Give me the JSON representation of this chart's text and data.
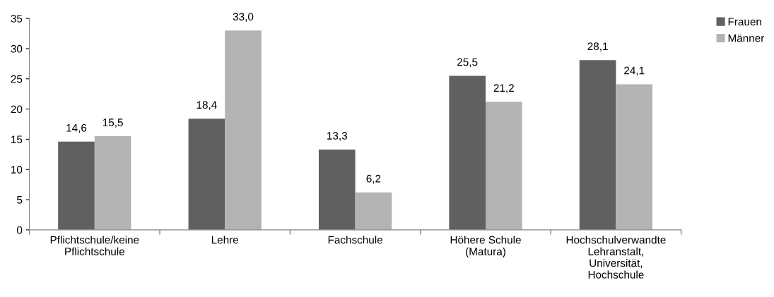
{
  "chart_data": {
    "type": "bar",
    "categories": [
      "Pflichtschule/keine\nPflichtschule",
      "Lehre",
      "Fachschule",
      "Höhere Schule\n(Matura)",
      "Hochschulverwandte\nLehranstalt,\nUniversität,\nHochschule"
    ],
    "series": [
      {
        "name": "Frauen",
        "color": "#606060",
        "values": [
          14.6,
          18.4,
          13.3,
          25.5,
          28.1
        ],
        "value_labels": [
          "14,6",
          "18,4",
          "13,3",
          "25,5",
          "28,1"
        ]
      },
      {
        "name": "Männer",
        "color": "#b3b3b3",
        "values": [
          15.5,
          33.0,
          6.2,
          21.2,
          24.1
        ],
        "value_labels": [
          "15,5",
          "33,0",
          "6,2",
          "21,2",
          "24,1"
        ]
      }
    ],
    "ylim": [
      0,
      35
    ],
    "yticks": [
      0,
      5,
      10,
      15,
      20,
      25,
      30,
      35
    ],
    "grid": false,
    "legend": "top right"
  }
}
